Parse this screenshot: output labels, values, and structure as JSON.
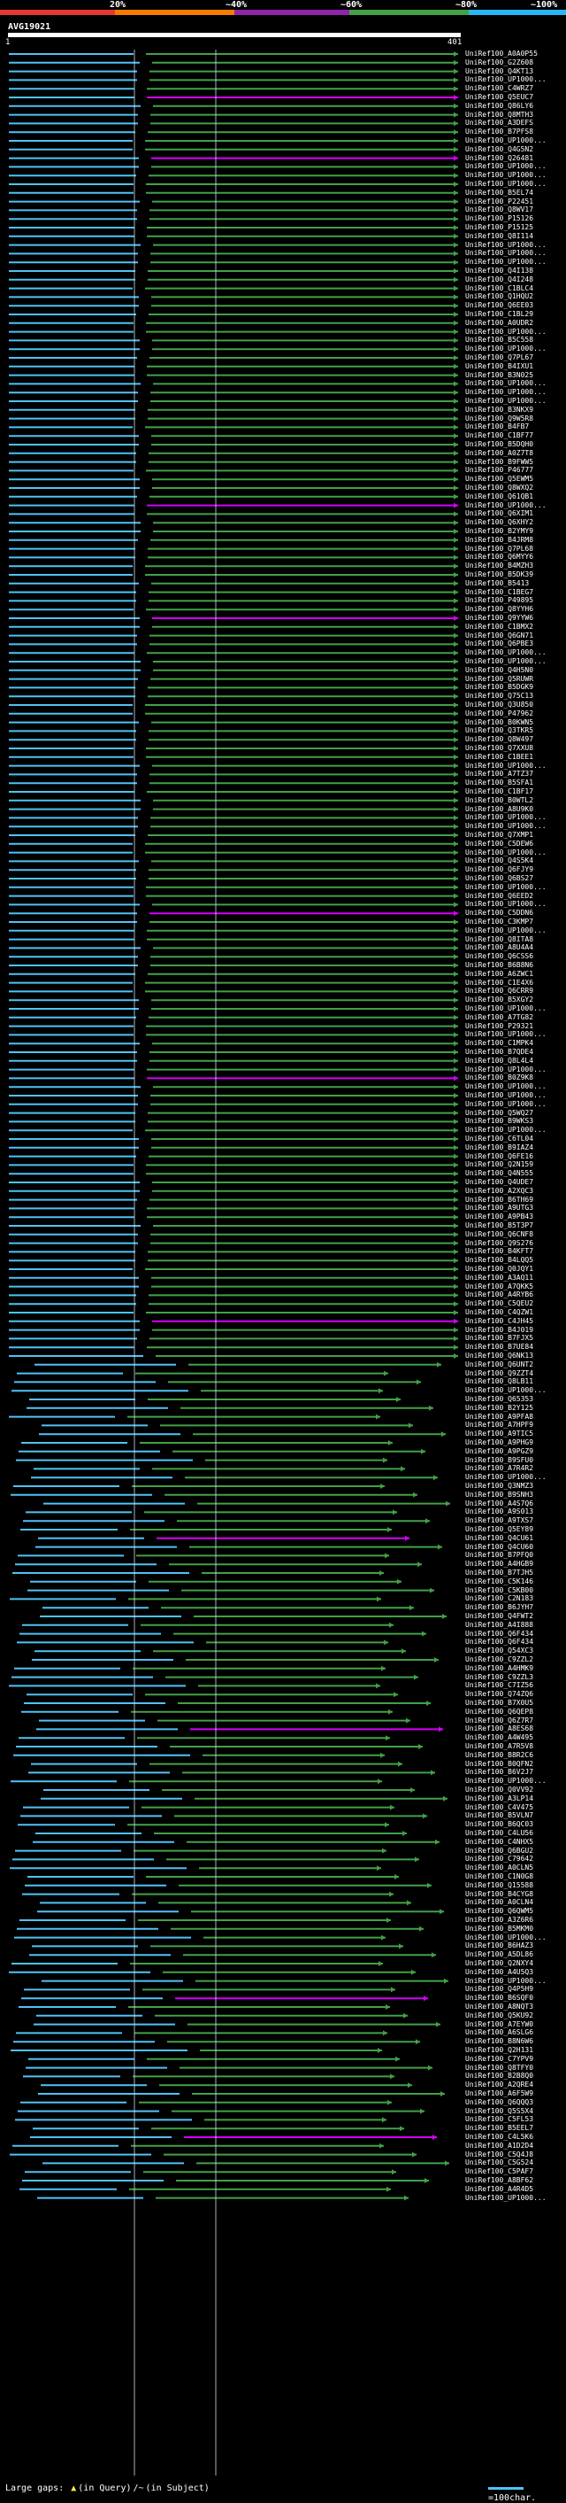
{
  "legend": {
    "ticks": [
      "20%",
      "~40%",
      "~60%",
      "~80%",
      "~100%"
    ],
    "colors": [
      "#e53935",
      "#f57c00",
      "#8e24aa",
      "#43a047",
      "#29b6f6"
    ]
  },
  "query": {
    "name": "AVG19021",
    "start": "1",
    "end": "401"
  },
  "hits": [
    "UniRef100_A0A0P55",
    "UniRef100_G2Z608",
    "UniRef100_Q4KT13",
    "UniRef100_UP1000...",
    "UniRef100_C4WRZ7",
    "UniRef100_Q5EUC7",
    "UniRef100_Q86LY6",
    "UniRef100_Q8MTH3",
    "UniRef100_A3DEFS",
    "UniRef100_B7PFS8",
    "UniRef100_UP1000...",
    "UniRef100_Q4G5N2",
    "UniRef100_Q26481",
    "UniRef100_UP1000...",
    "UniRef100_UP1000...",
    "UniRef100_UP1000...",
    "UniRef100_B5EL74",
    "UniRef100_P22451",
    "UniRef100_Q8WV17",
    "UniRef100_P15126",
    "UniRef100_P15125",
    "UniRef100_Q8I114",
    "UniRef100_UP1000...",
    "UniRef100_UP1000...",
    "UniRef100_UP1000...",
    "UniRef100_Q4I138",
    "UniRef100_Q4I248",
    "UniRef100_C1BLC4",
    "UniRef100_Q1HQU2",
    "UniRef100_Q6EE03",
    "UniRef100_C1BL29",
    "UniRef100_A0UDR2",
    "UniRef100_UP1000...",
    "UniRef100_B5C558",
    "UniRef100_UP1000...",
    "UniRef100_Q7PL67",
    "UniRef100_B4IXU1",
    "UniRef100_B3N025",
    "UniRef100_UP1000...",
    "UniRef100_UP1000...",
    "UniRef100_UP1000...",
    "UniRef100_B3NKX9",
    "UniRef100_Q9W5R8",
    "UniRef100_B4FB7",
    "UniRef100_C1BF77",
    "UniRef100_B5DQH0",
    "UniRef100_A0Z7T8",
    "UniRef100_B9FWW5",
    "UniRef100_P46777",
    "UniRef100_Q5EWM5",
    "UniRef100_Q8WXQ2",
    "UniRef100_Q61QB1",
    "UniRef100_UP1000...",
    "UniRef100_Q6XIM1",
    "UniRef100_Q6XHY2",
    "UniRef100_B2YMY9",
    "UniRef100_B4JRM8",
    "UniRef100_Q7PL68",
    "UniRef100_Q6MYY6",
    "UniRef100_B4MZH3",
    "UniRef100_B5DK39",
    "UniRef100_B5413",
    "UniRef100_C1BEG7",
    "UniRef100_P49895",
    "UniRef100_Q8YYH6",
    "UniRef100_Q9YYW6",
    "UniRef100_C1BMX2",
    "UniRef100_Q6GN71",
    "UniRef100_Q6PBE3",
    "UniRef100_UP1000...",
    "UniRef100_UP1000...",
    "UniRef100_Q4H5N0",
    "UniRef100_Q5RUWR",
    "UniRef100_B5DGK9",
    "UniRef100_Q75C13",
    "UniRef100_Q3U850",
    "UniRef100_P47962",
    "UniRef100_B0KWN5",
    "UniRef100_Q3TKR5",
    "UniRef100_Q8W497",
    "UniRef100_Q7XXU8",
    "UniRef100_C1BEE1",
    "UniRef100_UP1000...",
    "UniRef100_A7TZ37",
    "UniRef100_B5SFA1",
    "UniRef100_C1BF17",
    "UniRef100_B0WTL2",
    "UniRef100_A8U9K0",
    "UniRef100_UP1000...",
    "UniRef100_UP1000...",
    "UniRef100_Q7XMP1",
    "UniRef100_C5DEW6",
    "UniRef100_UP1000...",
    "UniRef100_Q4S5K4",
    "UniRef100_Q6FJY9",
    "UniRef100_Q6BS27",
    "UniRef100_UP1000...",
    "UniRef100_Q6EED2",
    "UniRef100_UP1000...",
    "UniRef100_C5DDN6",
    "UniRef100_C3KMP7",
    "UniRef100_UP1000...",
    "UniRef100_Q8ITA8",
    "UniRef100_A8U4A4",
    "UniRef100_Q6CSS6",
    "UniRef100_B6B8N6",
    "UniRef100_A6ZWC1",
    "UniRef100_C1E4X6",
    "UniRef100_Q6CRR9",
    "UniRef100_B5XGY2",
    "UniRef100_UP1000...",
    "UniRef100_A7TG82",
    "UniRef100_P29321",
    "UniRef100_UP1000...",
    "UniRef100_C1MPK4",
    "UniRef100_B7QDE4",
    "UniRef100_Q8L4L4",
    "UniRef100_UP1000...",
    "UniRef100_B0Z9K8",
    "UniRef100_UP1000...",
    "UniRef100_UP1000...",
    "UniRef100_UP1000...",
    "UniRef100_Q5WQ27",
    "UniRef100_B9WKS3",
    "UniRef100_UP1000...",
    "UniRef100_C6TL04",
    "UniRef100_B9IAZ4",
    "UniRef100_Q6FE16",
    "UniRef100_Q2N159",
    "UniRef100_Q4N555",
    "UniRef100_Q4UDE7",
    "UniRef100_A2XQC3",
    "UniRef100_B6TH69",
    "UniRef100_A9UTG3",
    "UniRef100_A9PB43",
    "UniRef100_B5T3P7",
    "UniRef100_Q6CNF8",
    "UniRef100_Q9S276",
    "UniRef100_B4KFT7",
    "UniRef100_B4LQQ5",
    "UniRef100_Q0JQY1",
    "UniRef100_A3AQ11",
    "UniRef100_A7QKK5",
    "UniRef100_A4RYB6",
    "UniRef100_C5QEU2",
    "UniRef100_C4QZW1",
    "UniRef100_C4JH45",
    "UniRef100_B4J019",
    "UniRef100_B7FJX5",
    "UniRef100_B7UE84",
    "UniRef100_Q6NK13",
    "UniRef100_Q6UNT2",
    "UniRef100_Q9ZZT4",
    "UniRef100_Q8LB11",
    "UniRef100_UP1000...",
    "UniRef100_Q65353",
    "UniRef100_B2Y125",
    "UniRef100_A9PFA8",
    "UniRef100_A7HPF9",
    "UniRef100_A9TIC5",
    "UniRef100_A9PHG9",
    "UniRef100_A9PGZ9",
    "UniRef100_B9SFU0",
    "UniRef100_A7R4R2",
    "UniRef100_UP1000...",
    "UniRef100_Q3NMZ3",
    "UniRef100_B9SNH3",
    "UniRef100_A4S7Q6",
    "UniRef100_A9S013",
    "UniRef100_A9TXS7",
    "UniRef100_Q5EY89",
    "UniRef100_Q4CU61",
    "UniRef100_Q4CU60",
    "UniRef100_B7PFQ0",
    "UniRef100_A4HGB9",
    "UniRef100_B7TJH5",
    "UniRef100_C5K146",
    "UniRef100_C5KB00",
    "UniRef100_C2N183",
    "UniRef100_B6JYH7",
    "UniRef100_Q4FWT2",
    "UniRef100_A4I888",
    "UniRef100_Q6F434",
    "UniRef100_Q6F434",
    "UniRef100_Q54XC3",
    "UniRef100_C9ZZL2",
    "UniRef100_A4HMK9",
    "UniRef100_C9ZZL3",
    "UniRef100_C7IZ56",
    "UniRef100_Q74ZQ6",
    "UniRef100_B7X0U5",
    "UniRef100_Q6QEP8",
    "UniRef100_Q6Z7R7",
    "UniRef100_A8ES68",
    "UniRef100_A4W495",
    "UniRef100_A7R5V8",
    "UniRef100_B8R2C6",
    "UniRef100_B0QFN2",
    "UniRef100_B6V2J7",
    "UniRef100_UP1000...",
    "UniRef100_Q0VV92",
    "UniRef100_A3LP14",
    "UniRef100_C4V475",
    "UniRef100_B5VLN7",
    "UniRef100_B6QC03",
    "UniRef100_C4LU56",
    "UniRef100_C4NHX5",
    "UniRef100_Q6BGU2",
    "UniRef100_C79642",
    "UniRef100_A0CLN5",
    "UniRef100_C1N0G8",
    "UniRef100_Q15588",
    "UniRef100_B4CYG8",
    "UniRef100_A0CLN4",
    "UniRef100_Q6QWM5",
    "UniRef100_A3Z6R6",
    "UniRef100_B5MKM0",
    "UniRef100_UP1000...",
    "UniRef100_B6HAZ3",
    "UniRef100_A5DL86",
    "UniRef100_Q2NXY4",
    "UniRef100_A4U5Q3",
    "UniRef100_UP1000...",
    "UniRef100_Q4P5H9",
    "UniRef100_B6SQF0",
    "UniRef100_A8NQT3",
    "UniRef100_Q5KU92",
    "UniRef100_A7EYW0",
    "UniRef100_A6SLG6",
    "UniRef100_B8N6W6",
    "UniRef100_Q2H131",
    "UniRef100_C7YPV9",
    "UniRef100_Q8TFY0",
    "UniRef100_B2B8Q0",
    "UniRef100_A2QRE4",
    "UniRef100_A6F5W9",
    "UniRef100_Q6QQQ3",
    "UniRef100_Q5S5X4",
    "UniRef100_C5FL53",
    "UniRef100_B5EEL7",
    "UniRef100_C4L5K6",
    "UniRef100_A1D2D4",
    "UniRef100_C5Q4J8",
    "UniRef100_C5G524",
    "UniRef100_C5PAF7",
    "UniRef100_A8BF62",
    "UniRef100_A4R4D5",
    "UniRef100_UP1000..."
  ],
  "footer": {
    "prefix": "Large gaps: ",
    "query_note": "(in Query)",
    "subject_note": "(in Subject)",
    "sym_query": "▲",
    "sym_subject": "/~",
    "scale_label": "=100char."
  }
}
